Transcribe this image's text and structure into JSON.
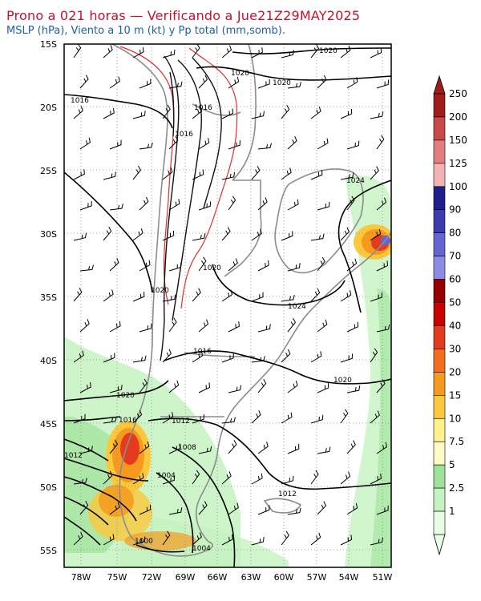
{
  "header": {
    "title": "Prono a 021 horas — Verificando a Jue21Z29MAY2025",
    "subtitle": "MSLP (hPa), Viento a 10 m (kt) y Pp total (mm,somb)."
  },
  "map": {
    "lat_labels": [
      "15S",
      "20S",
      "25S",
      "30S",
      "35S",
      "40S",
      "45S",
      "50S",
      "55S"
    ],
    "lon_labels": [
      "78W",
      "75W",
      "72W",
      "69W",
      "66W",
      "63W",
      "60W",
      "57W",
      "54W",
      "51W"
    ],
    "isobar_labels": [
      "1020",
      "1020",
      "1020",
      "1016",
      "1016",
      "1016",
      "1024",
      "1020",
      "1020",
      "1024",
      "1016",
      "1020",
      "1020",
      "1012",
      "1016",
      "1012",
      "1008",
      "1004",
      "1012",
      "1000",
      "1004"
    ]
  },
  "colorbar": {
    "labels": [
      "250",
      "200",
      "150",
      "125",
      "100",
      "90",
      "80",
      "70",
      "60",
      "50",
      "40",
      "30",
      "20",
      "15",
      "10",
      "7.5",
      "5",
      "2.5",
      "1"
    ],
    "colors": [
      "#a01b1b",
      "#c94848",
      "#e37d7d",
      "#f3b3b3",
      "#1e1e8c",
      "#3c3cb0",
      "#6464d2",
      "#8c8ce6",
      "#960000",
      "#c80000",
      "#e43b1e",
      "#f56e1e",
      "#f59a1e",
      "#fbc83c",
      "#fff08c",
      "#fffac8",
      "#9fe39a",
      "#c6f2c0",
      "#eafce6"
    ]
  }
}
